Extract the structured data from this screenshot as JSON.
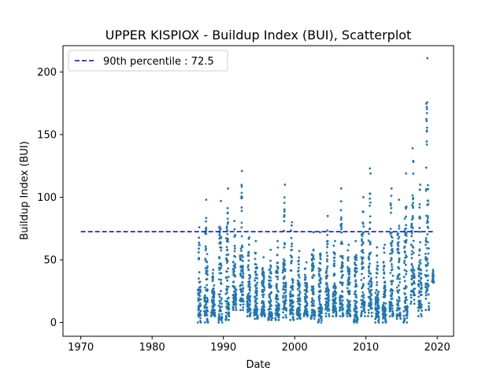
{
  "chart_data": {
    "type": "scatter",
    "title": "UPPER KISPIOX - Buildup Index (BUI), Scatterplot",
    "xlabel": "Date",
    "ylabel": "Buildup Index (BUI)",
    "xlim": [
      1967.5,
      2022.3
    ],
    "ylim": [
      -11,
      221
    ],
    "xticks": [
      1970,
      1980,
      1990,
      2000,
      2010,
      2020
    ],
    "yticks": [
      0,
      50,
      100,
      150,
      200
    ],
    "grid": false,
    "legend_position": "top-left",
    "marker_color": "#1f77b4",
    "reference_line": {
      "label": "90th percentile : 72.5",
      "value": 72.5,
      "x_start": 1970,
      "x_end": 2019.6,
      "color": "#0000cc",
      "style": "dashed"
    },
    "series": [
      {
        "seasons": [
          {
            "year": 1986,
            "start": 1986.45,
            "end": 1986.8,
            "min": 0,
            "peak": 76
          },
          {
            "year": 1987,
            "start": 1987.35,
            "end": 1987.8,
            "min": 0,
            "peak": 98
          },
          {
            "year": 1988,
            "start": 1988.35,
            "end": 1988.8,
            "min": 5,
            "peak": 42
          },
          {
            "year": 1989,
            "start": 1989.35,
            "end": 1989.8,
            "min": 0,
            "peak": 97
          },
          {
            "year": 1990,
            "start": 1990.35,
            "end": 1990.8,
            "min": 2,
            "peak": 107
          },
          {
            "year": 1991,
            "start": 1991.35,
            "end": 1991.8,
            "min": 10,
            "peak": 81
          },
          {
            "year": 1992,
            "start": 1992.35,
            "end": 1992.8,
            "min": 10,
            "peak": 121
          },
          {
            "year": 1993,
            "start": 1993.35,
            "end": 1993.8,
            "min": 5,
            "peak": 68
          },
          {
            "year": 1994,
            "start": 1994.35,
            "end": 1994.8,
            "min": 3,
            "peak": 65
          },
          {
            "year": 1995,
            "start": 1995.35,
            "end": 1995.8,
            "min": 5,
            "peak": 52
          },
          {
            "year": 1996,
            "start": 1996.35,
            "end": 1996.8,
            "min": 2,
            "peak": 58
          },
          {
            "year": 1997,
            "start": 1997.35,
            "end": 1997.8,
            "min": 2,
            "peak": 65
          },
          {
            "year": 1998,
            "start": 1998.35,
            "end": 1998.8,
            "min": 4,
            "peak": 110
          },
          {
            "year": 1999,
            "start": 1999.35,
            "end": 1999.8,
            "min": 2,
            "peak": 80
          },
          {
            "year": 2000,
            "start": 2000.35,
            "end": 2000.8,
            "min": 3,
            "peak": 57
          },
          {
            "year": 2001,
            "start": 2001.35,
            "end": 2001.8,
            "min": 5,
            "peak": 48
          },
          {
            "year": 2002,
            "start": 2002.35,
            "end": 2002.8,
            "min": 3,
            "peak": 72
          },
          {
            "year": 2003,
            "start": 2003.35,
            "end": 2003.8,
            "min": 0,
            "peak": 72
          },
          {
            "year": 2004,
            "start": 2004.35,
            "end": 2004.8,
            "min": 5,
            "peak": 85
          },
          {
            "year": 2005,
            "start": 2005.35,
            "end": 2005.8,
            "min": 5,
            "peak": 65
          },
          {
            "year": 2006,
            "start": 2006.35,
            "end": 2006.8,
            "min": 5,
            "peak": 107
          },
          {
            "year": 2007,
            "start": 2007.35,
            "end": 2007.8,
            "min": 5,
            "peak": 62
          },
          {
            "year": 2008,
            "start": 2008.35,
            "end": 2008.8,
            "min": 0,
            "peak": 65
          },
          {
            "year": 2009,
            "start": 2009.35,
            "end": 2009.8,
            "min": 5,
            "peak": 100
          },
          {
            "year": 2010,
            "start": 2010.35,
            "end": 2010.8,
            "min": 5,
            "peak": 123
          },
          {
            "year": 2011,
            "start": 2011.35,
            "end": 2011.8,
            "min": 0,
            "peak": 60
          },
          {
            "year": 2012,
            "start": 2012.35,
            "end": 2012.8,
            "min": 0,
            "peak": 62
          },
          {
            "year": 2013,
            "start": 2013.35,
            "end": 2013.8,
            "min": 5,
            "peak": 107
          },
          {
            "year": 2014,
            "start": 2014.35,
            "end": 2014.8,
            "min": 3,
            "peak": 98
          },
          {
            "year": 2015,
            "start": 2015.35,
            "end": 2015.8,
            "min": 0,
            "peak": 119
          },
          {
            "year": 2016,
            "start": 2016.35,
            "end": 2016.8,
            "min": 15,
            "peak": 139
          },
          {
            "year": 2017,
            "start": 2017.35,
            "end": 2017.8,
            "min": 5,
            "peak": 110
          },
          {
            "year": 2018,
            "start": 2018.35,
            "end": 2018.8,
            "min": 10,
            "peak": 211
          },
          {
            "year": 2019,
            "start": 2019.35,
            "end": 2019.5,
            "min": 32,
            "peak": 42
          }
        ]
      }
    ]
  }
}
